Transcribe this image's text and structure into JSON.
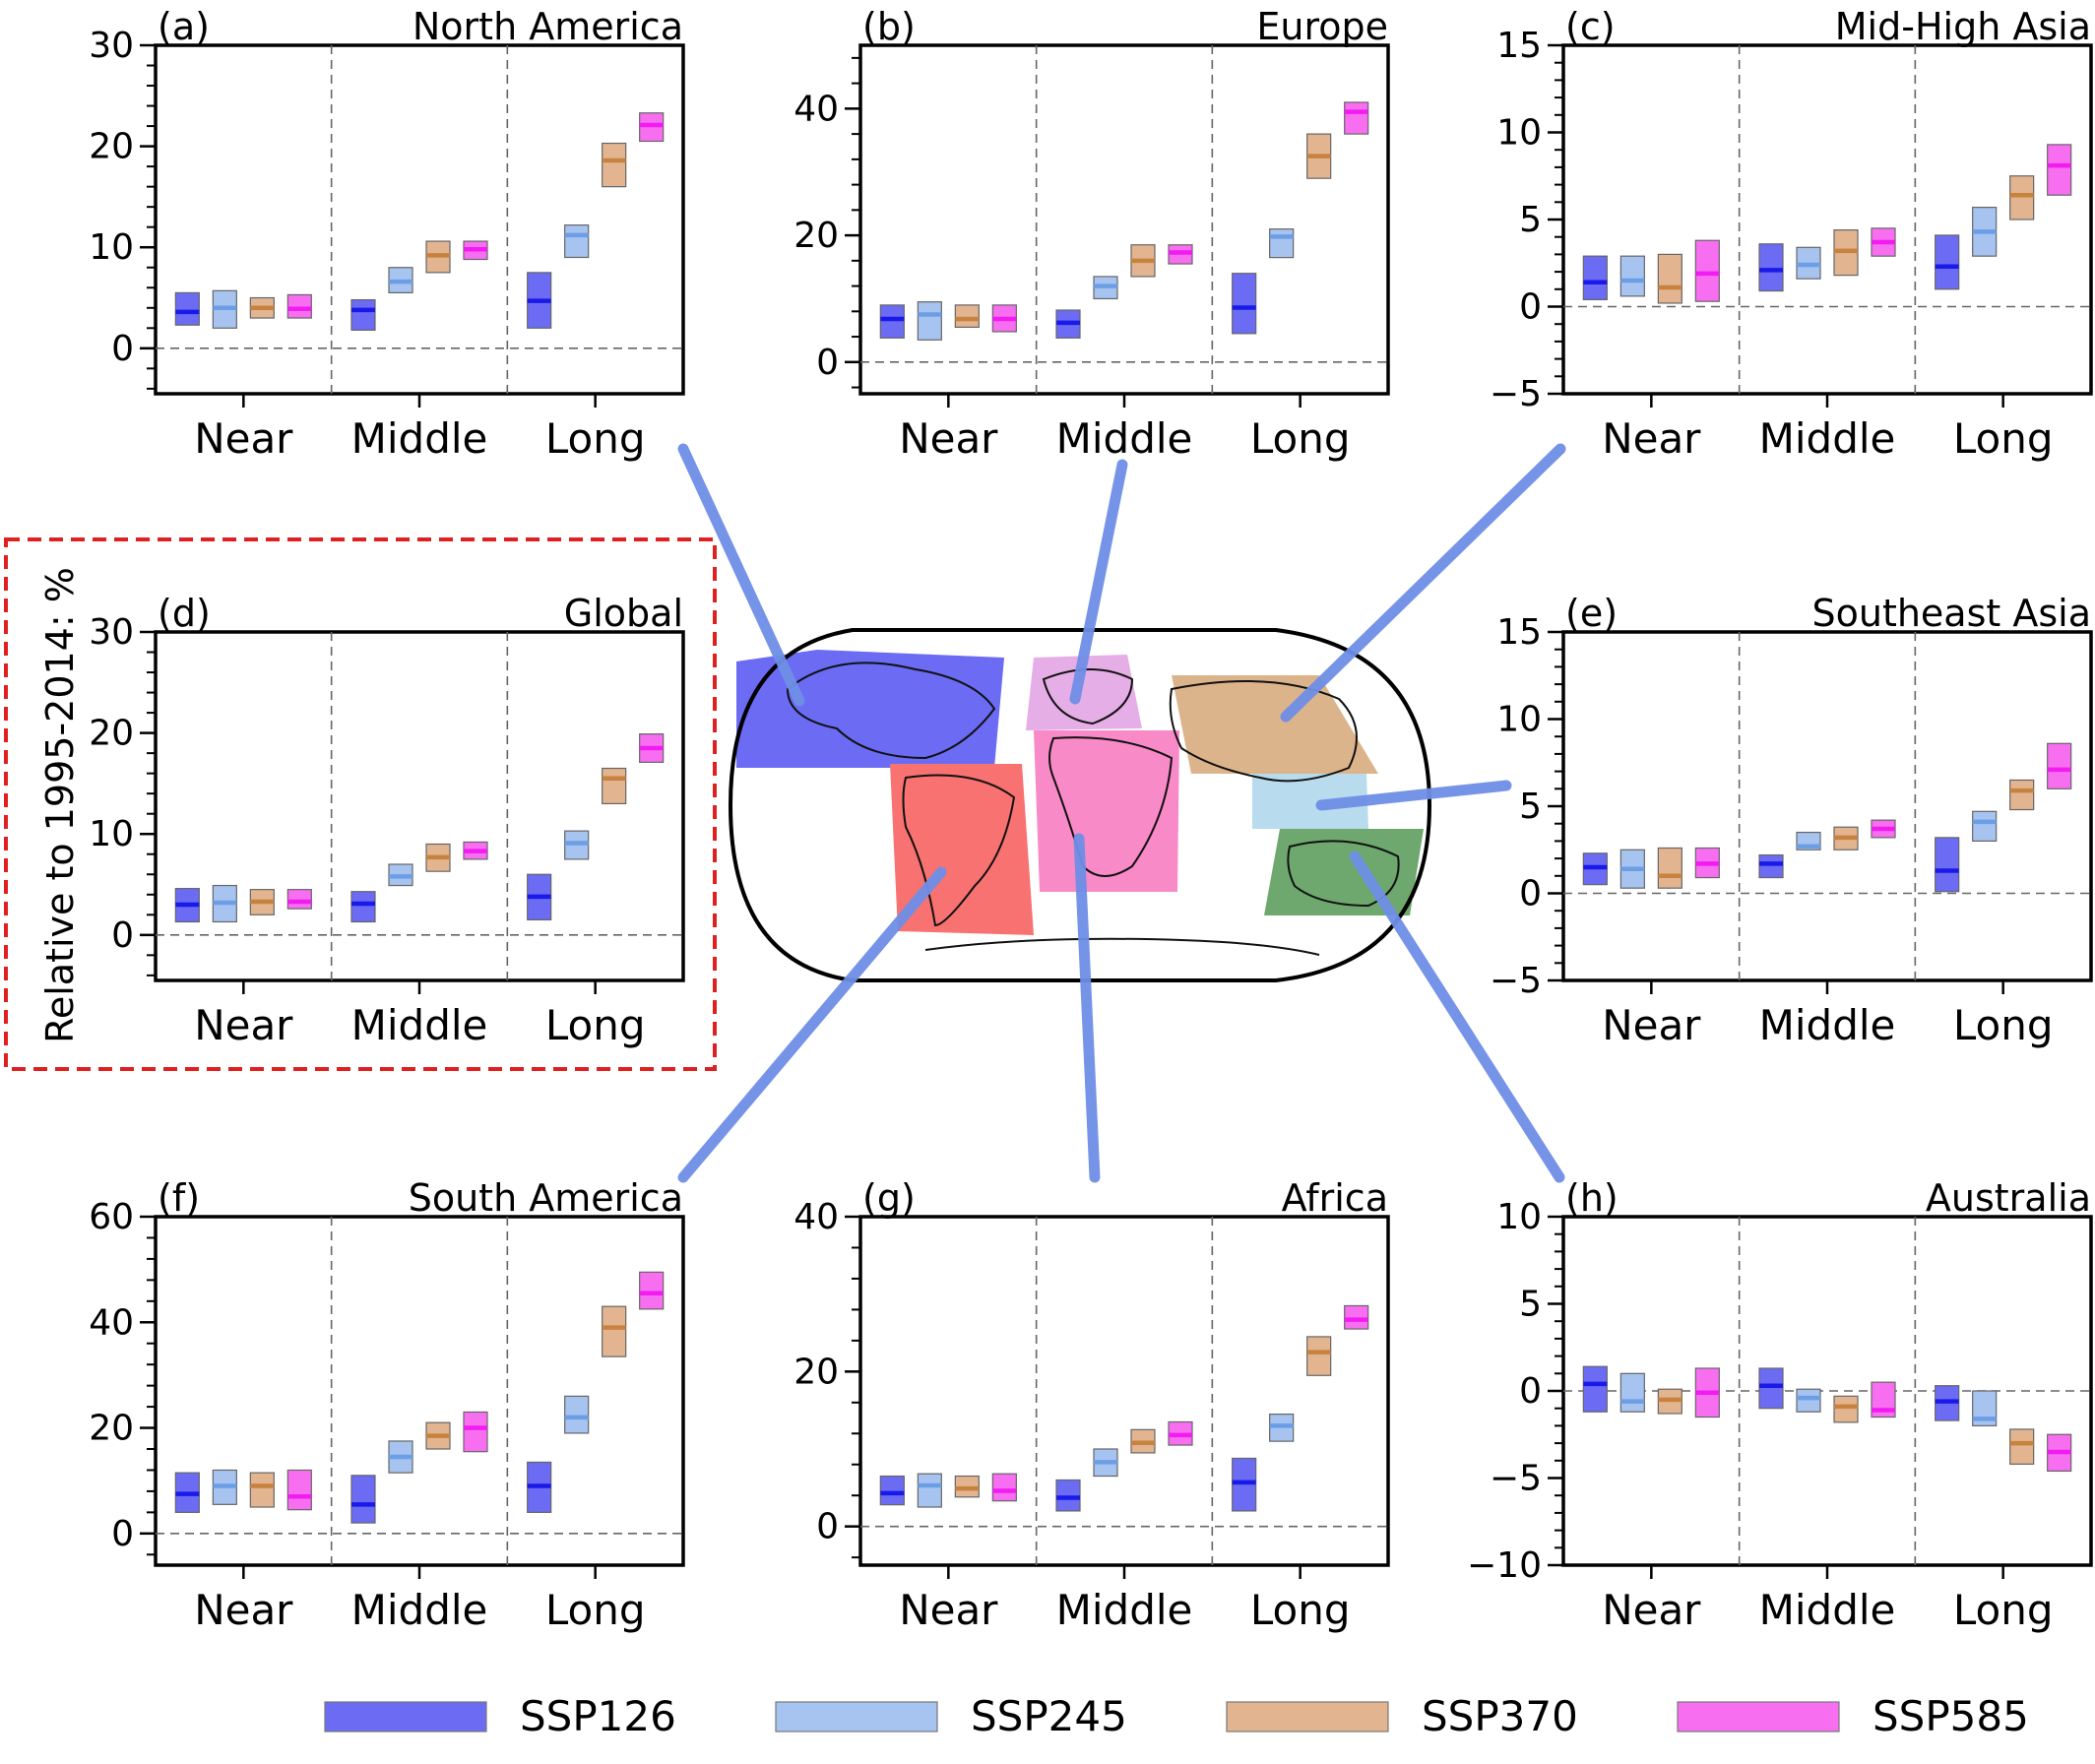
{
  "figure": {
    "y_axis_label": "Relative to 1995-2014: %",
    "legend": [
      {
        "name": "SSP126",
        "color": "#6b6bf4"
      },
      {
        "name": "SSP245",
        "color": "#a7c3f0"
      },
      {
        "name": "SSP370",
        "color": "#e2b48f"
      },
      {
        "name": "SSP585",
        "color": "#f86ef0"
      }
    ],
    "median_colors": [
      "#1a1ae8",
      "#6c9ee6",
      "#c8823f",
      "#f01cf0"
    ],
    "map": {
      "regions": [
        {
          "name": "North America",
          "color": "#6b6bf4"
        },
        {
          "name": "Europe",
          "color": "#e6aee6"
        },
        {
          "name": "Mid-High Asia",
          "color": "#dcb48c"
        },
        {
          "name": "Southeast Asia",
          "color": "#b8dcee"
        },
        {
          "name": "South America",
          "color": "#f87272"
        },
        {
          "name": "Africa",
          "color": "#f88ac8"
        },
        {
          "name": "Australia",
          "color": "#6ea86e"
        }
      ],
      "connector_color": "#6f8fe6"
    }
  },
  "chart_data": [
    {
      "type": "box",
      "tag": "(a)",
      "title": "North America",
      "categories": [
        "Near",
        "Middle",
        "Long"
      ],
      "series": [
        {
          "name": "SSP126",
          "values": [
            [
              2.3,
              5.5,
              3.6
            ],
            [
              1.8,
              4.8,
              3.8
            ],
            [
              2.0,
              7.5,
              4.7
            ]
          ]
        },
        {
          "name": "SSP245",
          "values": [
            [
              2.0,
              5.7,
              4.0
            ],
            [
              5.5,
              8.0,
              6.6
            ],
            [
              9.0,
              12.2,
              11.2
            ]
          ]
        },
        {
          "name": "SSP370",
          "values": [
            [
              3.0,
              5.0,
              4.0
            ],
            [
              7.5,
              10.6,
              9.2
            ],
            [
              16.0,
              20.3,
              18.6
            ]
          ]
        },
        {
          "name": "SSP585",
          "values": [
            [
              3.0,
              5.3,
              3.9
            ],
            [
              8.8,
              10.6,
              9.8
            ],
            [
              20.5,
              23.3,
              22.1
            ]
          ]
        }
      ],
      "ylim": [
        -4.5,
        30
      ],
      "yticks": [
        0,
        10,
        20,
        30
      ]
    },
    {
      "type": "box",
      "tag": "(b)",
      "title": "Europe",
      "categories": [
        "Near",
        "Middle",
        "Long"
      ],
      "series": [
        {
          "name": "SSP126",
          "values": [
            [
              3.8,
              9.0,
              6.8
            ],
            [
              3.8,
              8.2,
              6.2
            ],
            [
              4.5,
              14.0,
              8.6
            ]
          ]
        },
        {
          "name": "SSP245",
          "values": [
            [
              3.5,
              9.5,
              7.5
            ],
            [
              10.0,
              13.5,
              12.0
            ],
            [
              16.5,
              21.0,
              19.8
            ]
          ]
        },
        {
          "name": "SSP370",
          "values": [
            [
              5.5,
              9.0,
              6.8
            ],
            [
              13.5,
              18.5,
              16.0
            ],
            [
              29.0,
              36.0,
              32.5
            ]
          ]
        },
        {
          "name": "SSP585",
          "values": [
            [
              4.8,
              9.0,
              6.8
            ],
            [
              15.5,
              18.5,
              17.3
            ],
            [
              36.0,
              41.0,
              39.5
            ]
          ]
        }
      ],
      "ylim": [
        -5,
        50
      ],
      "yticks": [
        0,
        20,
        40
      ]
    },
    {
      "type": "box",
      "tag": "(c)",
      "title": "Mid-High Asia",
      "categories": [
        "Near",
        "Middle",
        "Long"
      ],
      "series": [
        {
          "name": "SSP126",
          "values": [
            [
              0.4,
              2.9,
              1.4
            ],
            [
              0.9,
              3.6,
              2.1
            ],
            [
              1.0,
              4.1,
              2.3
            ]
          ]
        },
        {
          "name": "SSP245",
          "values": [
            [
              0.6,
              2.9,
              1.5
            ],
            [
              1.6,
              3.4,
              2.4
            ],
            [
              2.9,
              5.7,
              4.3
            ]
          ]
        },
        {
          "name": "SSP370",
          "values": [
            [
              0.2,
              3.0,
              1.1
            ],
            [
              1.8,
              4.4,
              3.2
            ],
            [
              5.0,
              7.5,
              6.4
            ]
          ]
        },
        {
          "name": "SSP585",
          "values": [
            [
              0.3,
              3.8,
              1.9
            ],
            [
              2.9,
              4.5,
              3.7
            ],
            [
              6.4,
              9.3,
              8.1
            ]
          ]
        }
      ],
      "ylim": [
        -5,
        15
      ],
      "yticks": [
        -5,
        0,
        5,
        10,
        15
      ]
    },
    {
      "type": "box",
      "tag": "(d)",
      "title": "Global",
      "categories": [
        "Near",
        "Middle",
        "Long"
      ],
      "series": [
        {
          "name": "SSP126",
          "values": [
            [
              1.3,
              4.6,
              3.0
            ],
            [
              1.3,
              4.3,
              3.1
            ],
            [
              1.5,
              6.0,
              3.8
            ]
          ]
        },
        {
          "name": "SSP245",
          "values": [
            [
              1.3,
              4.9,
              3.2
            ],
            [
              4.9,
              7.0,
              5.8
            ],
            [
              7.5,
              10.3,
              9.1
            ]
          ]
        },
        {
          "name": "SSP370",
          "values": [
            [
              2.0,
              4.5,
              3.3
            ],
            [
              6.3,
              9.0,
              7.7
            ],
            [
              13.0,
              16.5,
              15.5
            ]
          ]
        },
        {
          "name": "SSP585",
          "values": [
            [
              2.6,
              4.5,
              3.3
            ],
            [
              7.5,
              9.2,
              8.3
            ],
            [
              17.1,
              19.9,
              18.5
            ]
          ]
        }
      ],
      "ylim": [
        -4.5,
        30
      ],
      "yticks": [
        0,
        10,
        20,
        30
      ]
    },
    {
      "type": "box",
      "tag": "(e)",
      "title": "Southeast Asia",
      "categories": [
        "Near",
        "Middle",
        "Long"
      ],
      "series": [
        {
          "name": "SSP126",
          "values": [
            [
              0.5,
              2.3,
              1.5
            ],
            [
              0.9,
              2.2,
              1.7
            ],
            [
              0.1,
              3.2,
              1.3
            ]
          ]
        },
        {
          "name": "SSP245",
          "values": [
            [
              0.3,
              2.5,
              1.4
            ],
            [
              2.5,
              3.5,
              2.7
            ],
            [
              3.0,
              4.7,
              4.1
            ]
          ]
        },
        {
          "name": "SSP370",
          "values": [
            [
              0.3,
              2.6,
              1.0
            ],
            [
              2.5,
              3.8,
              3.2
            ],
            [
              4.8,
              6.5,
              5.9
            ]
          ]
        },
        {
          "name": "SSP585",
          "values": [
            [
              0.9,
              2.6,
              1.7
            ],
            [
              3.2,
              4.2,
              3.7
            ],
            [
              6.0,
              8.6,
              7.1
            ]
          ]
        }
      ],
      "ylim": [
        -5,
        15
      ],
      "yticks": [
        -5,
        0,
        5,
        10,
        15
      ]
    },
    {
      "type": "box",
      "tag": "(f)",
      "title": "South America",
      "categories": [
        "Near",
        "Middle",
        "Long"
      ],
      "series": [
        {
          "name": "SSP126",
          "values": [
            [
              4.0,
              11.5,
              7.5
            ],
            [
              2.0,
              11.0,
              5.5
            ],
            [
              4.0,
              13.5,
              9.0
            ]
          ]
        },
        {
          "name": "SSP245",
          "values": [
            [
              5.5,
              12.0,
              9.0
            ],
            [
              11.5,
              17.5,
              14.5
            ],
            [
              19.0,
              26.0,
              22.0
            ]
          ]
        },
        {
          "name": "SSP370",
          "values": [
            [
              5.0,
              11.5,
              9.0
            ],
            [
              16.0,
              21.0,
              18.5
            ],
            [
              33.5,
              43.0,
              39.0
            ]
          ]
        },
        {
          "name": "SSP585",
          "values": [
            [
              4.5,
              12.0,
              7.0
            ],
            [
              15.5,
              23.0,
              20.0
            ],
            [
              42.5,
              49.5,
              45.5
            ]
          ]
        }
      ],
      "ylim": [
        -6,
        60
      ],
      "yticks": [
        0,
        20,
        40,
        60
      ]
    },
    {
      "type": "box",
      "tag": "(g)",
      "title": "Africa",
      "categories": [
        "Near",
        "Middle",
        "Long"
      ],
      "series": [
        {
          "name": "SSP126",
          "values": [
            [
              2.8,
              6.5,
              4.3
            ],
            [
              2.0,
              6.0,
              3.7
            ],
            [
              2.0,
              8.8,
              5.7
            ]
          ]
        },
        {
          "name": "SSP245",
          "values": [
            [
              2.5,
              6.8,
              5.3
            ],
            [
              6.5,
              10.0,
              8.3
            ],
            [
              11.0,
              14.5,
              13.0
            ]
          ]
        },
        {
          "name": "SSP370",
          "values": [
            [
              3.8,
              6.5,
              4.9
            ],
            [
              9.5,
              12.5,
              10.8
            ],
            [
              19.5,
              24.5,
              22.5
            ]
          ]
        },
        {
          "name": "SSP585",
          "values": [
            [
              3.3,
              6.8,
              4.6
            ],
            [
              10.5,
              13.5,
              11.8
            ],
            [
              25.5,
              28.5,
              26.7
            ]
          ]
        }
      ],
      "ylim": [
        -5,
        40
      ],
      "yticks": [
        0,
        20,
        40
      ]
    },
    {
      "type": "box",
      "tag": "(h)",
      "title": "Australia",
      "categories": [
        "Near",
        "Middle",
        "Long"
      ],
      "series": [
        {
          "name": "SSP126",
          "values": [
            [
              -1.2,
              1.4,
              0.4
            ],
            [
              -1.0,
              1.3,
              0.3
            ],
            [
              -1.7,
              0.3,
              -0.6
            ]
          ]
        },
        {
          "name": "SSP245",
          "values": [
            [
              -1.2,
              1.0,
              -0.6
            ],
            [
              -1.2,
              0.1,
              -0.4
            ],
            [
              -2.0,
              0.0,
              -1.6
            ]
          ]
        },
        {
          "name": "SSP370",
          "values": [
            [
              -1.3,
              0.1,
              -0.5
            ],
            [
              -1.8,
              -0.3,
              -0.9
            ],
            [
              -4.2,
              -2.2,
              -3.0
            ]
          ]
        },
        {
          "name": "SSP585",
          "values": [
            [
              -1.5,
              1.3,
              -0.1
            ],
            [
              -1.5,
              0.5,
              -1.1
            ],
            [
              -4.6,
              -2.5,
              -3.5
            ]
          ]
        }
      ],
      "ylim": [
        -10,
        10
      ],
      "yticks": [
        -10,
        -5,
        0,
        5,
        10
      ]
    }
  ]
}
